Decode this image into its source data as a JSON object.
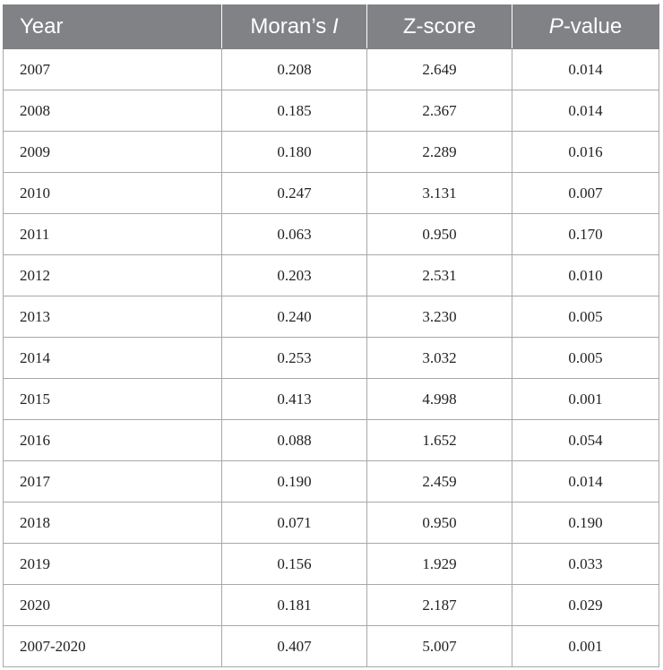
{
  "table": {
    "headers": {
      "year": "Year",
      "morans_prefix": "Moran’s ",
      "morans_italic": "I",
      "zscore": "Z-score",
      "pvalue_italic": "P",
      "pvalue_suffix": "-value"
    },
    "rows": [
      {
        "year": "2007",
        "morans_i": "0.208",
        "z_score": "2.649",
        "p_value": "0.014"
      },
      {
        "year": "2008",
        "morans_i": "0.185",
        "z_score": "2.367",
        "p_value": "0.014"
      },
      {
        "year": "2009",
        "morans_i": "0.180",
        "z_score": "2.289",
        "p_value": "0.016"
      },
      {
        "year": "2010",
        "morans_i": "0.247",
        "z_score": "3.131",
        "p_value": "0.007"
      },
      {
        "year": "2011",
        "morans_i": "0.063",
        "z_score": "0.950",
        "p_value": "0.170"
      },
      {
        "year": "2012",
        "morans_i": "0.203",
        "z_score": "2.531",
        "p_value": "0.010"
      },
      {
        "year": "2013",
        "morans_i": "0.240",
        "z_score": "3.230",
        "p_value": "0.005"
      },
      {
        "year": "2014",
        "morans_i": "0.253",
        "z_score": "3.032",
        "p_value": "0.005"
      },
      {
        "year": "2015",
        "morans_i": "0.413",
        "z_score": "4.998",
        "p_value": "0.001"
      },
      {
        "year": "2016",
        "morans_i": "0.088",
        "z_score": "1.652",
        "p_value": "0.054"
      },
      {
        "year": "2017",
        "morans_i": "0.190",
        "z_score": "2.459",
        "p_value": "0.014"
      },
      {
        "year": "2018",
        "morans_i": "0.071",
        "z_score": "0.950",
        "p_value": "0.190"
      },
      {
        "year": "2019",
        "morans_i": "0.156",
        "z_score": "1.929",
        "p_value": "0.033"
      },
      {
        "year": "2020",
        "morans_i": "0.181",
        "z_score": "2.187",
        "p_value": "0.029"
      },
      {
        "year": "2007-2020",
        "morans_i": "0.407",
        "z_score": "5.007",
        "p_value": "0.001"
      }
    ]
  },
  "colors": {
    "header_bg": "#808285",
    "header_text": "#ffffff",
    "grid_line": "#a8a8a8",
    "body_text": "#222222"
  }
}
